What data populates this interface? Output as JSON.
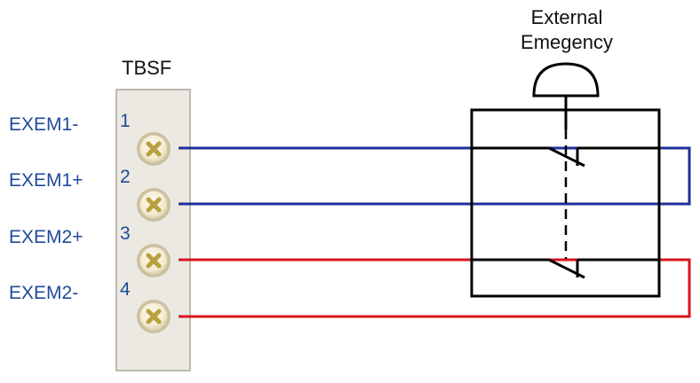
{
  "terminal_block": {
    "label": "TBSF",
    "terminals": [
      {
        "number": "1",
        "signal": "EXEM1-"
      },
      {
        "number": "2",
        "signal": "EXEM1+"
      },
      {
        "number": "3",
        "signal": "EXEM2+"
      },
      {
        "number": "4",
        "signal": "EXEM2-"
      }
    ]
  },
  "external_emergency": {
    "line1": "External",
    "line2": "Emegency"
  },
  "colors": {
    "wire_pair_1": "#1f2f9a",
    "wire_pair_2": "#d8141f",
    "label_text": "#1f4a9a",
    "block_fill": "#ece9e2",
    "screw": "#b8a040",
    "switch": "#000000"
  }
}
